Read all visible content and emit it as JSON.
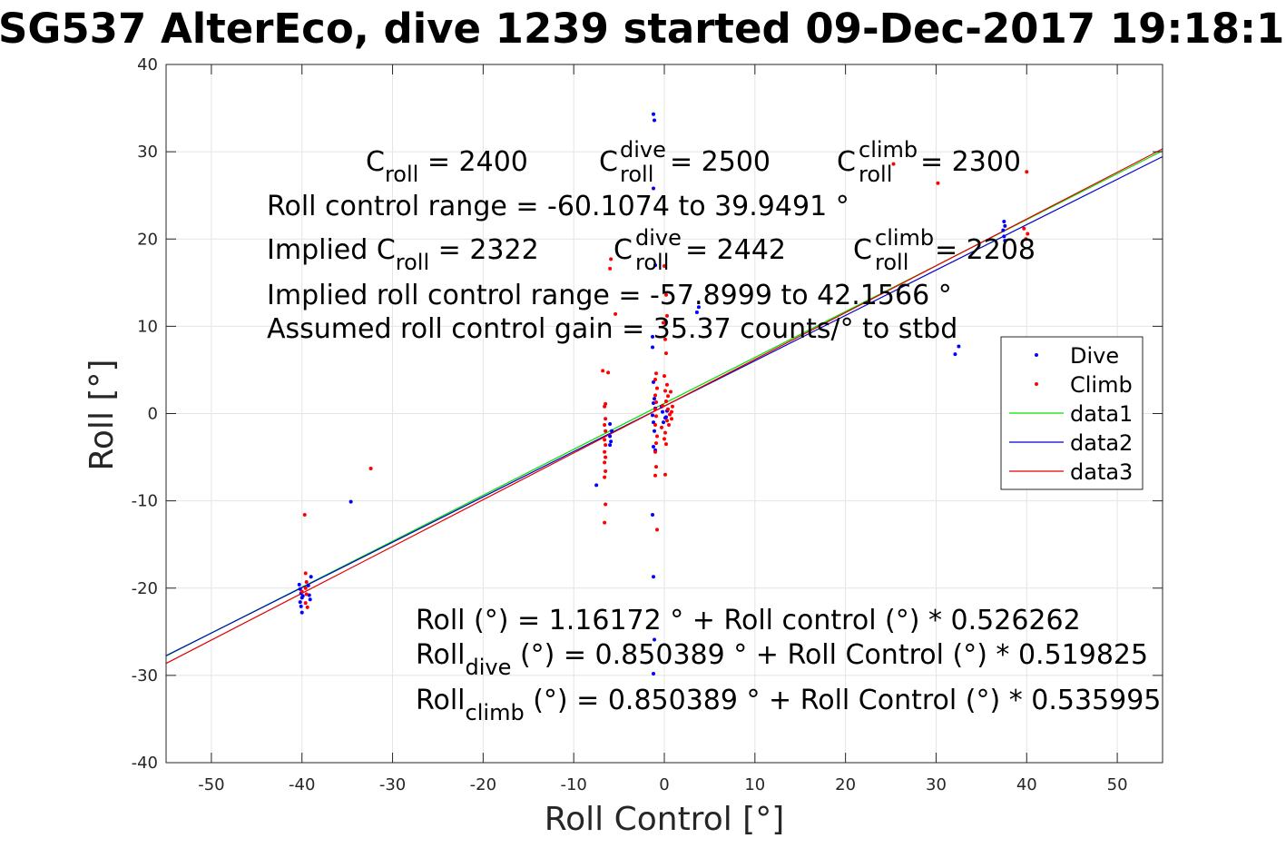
{
  "chart_data": {
    "type": "scatter",
    "title": "SG537 AlterEco, dive 1239 started 09-Dec-2017 19:18:1",
    "xlabel": "Roll Control [°]",
    "ylabel": "Roll [°]",
    "xlim": [
      -55,
      55
    ],
    "ylim": [
      -40,
      40
    ],
    "xticks": [
      -50,
      -40,
      -30,
      -20,
      -10,
      0,
      10,
      20,
      30,
      40,
      50
    ],
    "yticks": [
      -40,
      -30,
      -20,
      -10,
      0,
      10,
      20,
      30,
      40
    ],
    "grid": true,
    "legend_position": "right",
    "legend": [
      "Dive",
      "Climb",
      "data1",
      "data2",
      "data3"
    ],
    "series": [
      {
        "name": "Dive",
        "kind": "points",
        "color": "#0000ff",
        "points": [
          [
            -1.2,
            34.3
          ],
          [
            -1.1,
            33.6
          ],
          [
            -1.2,
            25.8
          ],
          [
            -1.0,
            17.0
          ],
          [
            -1.3,
            8.8
          ],
          [
            -1.3,
            7.6
          ],
          [
            -1.2,
            3.6
          ],
          [
            -1.1,
            1.7
          ],
          [
            -1.2,
            1.2
          ],
          [
            -1.0,
            0.6
          ],
          [
            -1.3,
            -0.2
          ],
          [
            -1.2,
            -1.0
          ],
          [
            -1.1,
            -2.0
          ],
          [
            -1.2,
            -3.8
          ],
          [
            -1.0,
            -4.2
          ],
          [
            -1.3,
            -11.6
          ],
          [
            -1.2,
            -18.7
          ],
          [
            -1.1,
            -25.9
          ],
          [
            -1.2,
            -29.8
          ],
          [
            -0.3,
            0.8
          ],
          [
            -0.2,
            0.2
          ],
          [
            0.1,
            -0.5
          ],
          [
            0.3,
            0.3
          ],
          [
            -0.1,
            -1.0
          ],
          [
            0.2,
            -0.4
          ],
          [
            -6.0,
            -1.2
          ],
          [
            -5.8,
            -2.0
          ],
          [
            -6.0,
            -2.6
          ],
          [
            -5.9,
            -3.2
          ],
          [
            -6.0,
            -3.6
          ],
          [
            -7.5,
            -8.2
          ],
          [
            3.8,
            12.2
          ],
          [
            3.6,
            11.6
          ],
          [
            -34.6,
            -10.1
          ],
          [
            -40.2,
            -20.1
          ],
          [
            -40.1,
            -20.6
          ],
          [
            -40.0,
            -21.1
          ],
          [
            -40.2,
            -21.6
          ],
          [
            -40.1,
            -22.1
          ],
          [
            -40.0,
            -22.8
          ],
          [
            -40.3,
            -19.6
          ],
          [
            -39.9,
            -20.9
          ],
          [
            -39.3,
            -19.7
          ],
          [
            -39.2,
            -20.8
          ],
          [
            -39.1,
            -21.3
          ],
          [
            -39.0,
            -18.7
          ],
          [
            37.5,
            22.0
          ],
          [
            37.6,
            21.5
          ],
          [
            37.4,
            21.0
          ],
          [
            37.5,
            20.3
          ],
          [
            37.6,
            19.8
          ],
          [
            32.5,
            7.7
          ],
          [
            32.1,
            6.8
          ]
        ]
      },
      {
        "name": "Climb",
        "kind": "points",
        "color": "#ff0000",
        "points": [
          [
            25.3,
            28.6
          ],
          [
            30.2,
            26.4
          ],
          [
            40.0,
            27.7
          ],
          [
            39.7,
            21.2
          ],
          [
            39.9,
            20.0
          ],
          [
            40.1,
            20.6
          ],
          [
            -5.9,
            17.7
          ],
          [
            -6.0,
            16.6
          ],
          [
            -5.4,
            11.4
          ],
          [
            -6.2,
            4.7
          ],
          [
            -6.8,
            4.9
          ],
          [
            -6.5,
            1.1
          ],
          [
            -6.6,
            0.8
          ],
          [
            -6.5,
            -0.6
          ],
          [
            -6.6,
            -1.3
          ],
          [
            -6.5,
            -2.0
          ],
          [
            -6.6,
            -3.0
          ],
          [
            -6.5,
            -3.6
          ],
          [
            -6.6,
            -4.4
          ],
          [
            -6.5,
            -5.0
          ],
          [
            -6.6,
            -5.6
          ],
          [
            -6.5,
            -6.6
          ],
          [
            -6.6,
            -7.3
          ],
          [
            -6.5,
            -10.4
          ],
          [
            -6.6,
            -12.5
          ],
          [
            -0.9,
            4.6
          ],
          [
            -1.0,
            3.9
          ],
          [
            -0.8,
            2.9
          ],
          [
            -1.0,
            2.1
          ],
          [
            -0.9,
            1.3
          ],
          [
            -1.0,
            0.5
          ],
          [
            -0.9,
            -0.3
          ],
          [
            -1.0,
            -1.3
          ],
          [
            -0.8,
            -2.6
          ],
          [
            -0.9,
            -3.4
          ],
          [
            -1.0,
            -4.4
          ],
          [
            -0.9,
            -6.1
          ],
          [
            -1.0,
            -7.1
          ],
          [
            -0.8,
            -13.3
          ],
          [
            0.0,
            16.9
          ],
          [
            0.2,
            13.6
          ],
          [
            0.3,
            11.2
          ],
          [
            -0.1,
            10.4
          ],
          [
            0.1,
            8.5
          ],
          [
            0.2,
            6.9
          ],
          [
            0.0,
            4.3
          ],
          [
            0.3,
            3.3
          ],
          [
            0.1,
            2.6
          ],
          [
            0.4,
            2.0
          ],
          [
            0.2,
            1.4
          ],
          [
            -0.2,
            0.9
          ],
          [
            0.4,
            0.5
          ],
          [
            0.6,
            -0.1
          ],
          [
            0.8,
            0.2
          ],
          [
            0.3,
            -0.8
          ],
          [
            0.5,
            -1.3
          ],
          [
            -0.3,
            -1.6
          ],
          [
            0.1,
            -2.2
          ],
          [
            0.0,
            -2.9
          ],
          [
            0.2,
            -3.5
          ],
          [
            0.1,
            -7.0
          ],
          [
            0.7,
            2.5
          ],
          [
            0.9,
            0.8
          ],
          [
            0.8,
            -0.6
          ],
          [
            -32.4,
            -6.3
          ],
          [
            -39.7,
            -11.6
          ],
          [
            -39.6,
            -18.3
          ],
          [
            -39.5,
            -19.3
          ],
          [
            -39.6,
            -20.0
          ],
          [
            -39.5,
            -20.7
          ],
          [
            -39.6,
            -21.7
          ],
          [
            -39.4,
            -22.2
          ],
          [
            -40.0,
            -20.4
          ]
        ]
      },
      {
        "name": "data1",
        "kind": "line",
        "color": "#00e000",
        "x": [
          -55,
          55
        ],
        "y": [
          -27.78,
          30.11
        ]
      },
      {
        "name": "data2",
        "kind": "line",
        "color": "#0000c8",
        "x": [
          -55,
          55
        ],
        "y": [
          -27.74,
          29.44
        ]
      },
      {
        "name": "data3",
        "kind": "line",
        "color": "#e00000",
        "x": [
          -55,
          55
        ],
        "y": [
          -28.63,
          30.33
        ]
      }
    ],
    "annotations_top": {
      "line1": {
        "croll_main": "C",
        "croll_sub": "roll",
        "croll_rest": " = 2400",
        "cdive_main": "C",
        "cdive_sup": "dive",
        "cdive_sub": "roll",
        "cdive_rest": " = 2500",
        "cclimb_main": "C",
        "cclimb_sup": "climb",
        "cclimb_sub": "roll",
        "cclimb_rest": " = 2300"
      },
      "line2": "Roll control range = -60.1074 to 39.9491 °",
      "line3": {
        "implied_main": "Implied C",
        "implied_sub": "roll",
        "implied_rest": " = 2322",
        "cdive_main": "C",
        "cdive_sup": "dive",
        "cdive_sub": "roll",
        "cdive_rest": " = 2442",
        "cclimb_main": "C",
        "cclimb_sup": "climb",
        "cclimb_sub": "roll",
        "cclimb_rest": " = 2208"
      },
      "line4": "Implied roll control range = -57.8999 to 42.1566 °",
      "line5": "Assumed roll control gain = 35.37 counts/° to stbd"
    },
    "annotations_bottom": {
      "line1": "Roll (°) = 1.16172 ° + Roll control (°) * 0.526262",
      "line2": {
        "main": "Roll",
        "sub": "dive",
        "rest": " (°) = 0.850389 ° + Roll Control (°) * 0.519825"
      },
      "line3": {
        "main": "Roll",
        "sub": "climb",
        "rest": " (°) = 0.850389 ° + Roll Control (°) * 0.535995"
      }
    }
  }
}
